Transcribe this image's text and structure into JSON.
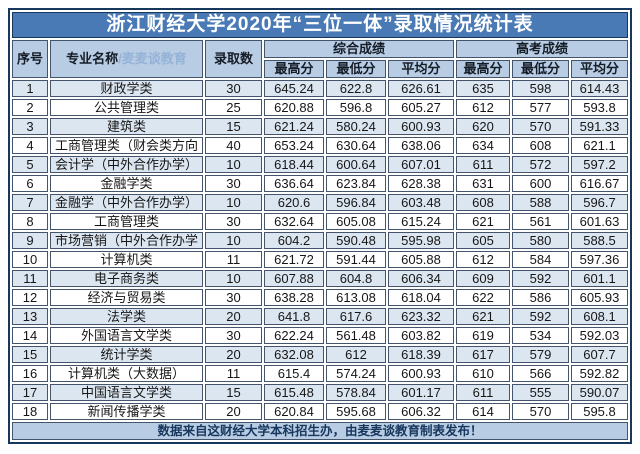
{
  "chart_data": {
    "type": "table",
    "title": "浙江财经大学2020年“三位一体”录取情况统计表",
    "columns": [
      "序号",
      "专业名称",
      "录取数",
      "最高分",
      "最低分",
      "平均分",
      "最高分",
      "最低分",
      "平均分"
    ],
    "column_groups": [
      {
        "label": "综合成绩",
        "span": 3
      },
      {
        "label": "高考成绩",
        "span": 3
      }
    ],
    "major_header_watermark": "/麦麦谈教育",
    "rows": [
      [
        "1",
        "财政学类",
        "30",
        "645.24",
        "622.8",
        "626.61",
        "635",
        "598",
        "614.43"
      ],
      [
        "2",
        "公共管理类",
        "25",
        "620.88",
        "596.8",
        "605.27",
        "612",
        "577",
        "593.8"
      ],
      [
        "3",
        "建筑类",
        "15",
        "621.24",
        "580.24",
        "600.93",
        "620",
        "570",
        "591.33"
      ],
      [
        "4",
        "工商管理类（财会类方向",
        "40",
        "653.24",
        "630.64",
        "638.06",
        "634",
        "608",
        "621.1"
      ],
      [
        "5",
        "会计学（中外合作办学）",
        "10",
        "618.44",
        "600.64",
        "607.01",
        "611",
        "572",
        "597.2"
      ],
      [
        "6",
        "金融学类",
        "30",
        "636.64",
        "623.84",
        "628.38",
        "631",
        "600",
        "616.67"
      ],
      [
        "7",
        "金融学（中外合作办学）",
        "10",
        "620.6",
        "596.84",
        "603.48",
        "608",
        "588",
        "596.7"
      ],
      [
        "8",
        "工商管理类",
        "30",
        "632.64",
        "605.08",
        "615.24",
        "621",
        "561",
        "601.63"
      ],
      [
        "9",
        "市场营销（中外合作办学",
        "10",
        "604.2",
        "590.48",
        "595.98",
        "605",
        "580",
        "588.5"
      ],
      [
        "10",
        "计算机类",
        "11",
        "621.72",
        "591.44",
        "605.88",
        "612",
        "584",
        "597.36"
      ],
      [
        "11",
        "电子商务类",
        "10",
        "607.88",
        "604.8",
        "606.34",
        "609",
        "592",
        "601.1"
      ],
      [
        "12",
        "经济与贸易类",
        "30",
        "638.28",
        "613.08",
        "618.04",
        "622",
        "586",
        "605.93"
      ],
      [
        "13",
        "法学类",
        "20",
        "641.8",
        "617.6",
        "623.32",
        "621",
        "592",
        "608.1"
      ],
      [
        "14",
        "外国语言文学类",
        "30",
        "622.24",
        "561.48",
        "603.82",
        "619",
        "534",
        "592.03"
      ],
      [
        "15",
        "统计学类",
        "20",
        "632.08",
        "612",
        "618.39",
        "617",
        "579",
        "607.7"
      ],
      [
        "16",
        "计算机类（大数据）",
        "11",
        "615.4",
        "574.24",
        "600.93",
        "610",
        "566",
        "592.82"
      ],
      [
        "17",
        "中国语言文学类",
        "15",
        "615.48",
        "578.84",
        "601.17",
        "611",
        "555",
        "590.07"
      ],
      [
        "18",
        "新闻传播学类",
        "20",
        "620.84",
        "595.68",
        "606.32",
        "614",
        "570",
        "595.8"
      ]
    ],
    "footer": "数据来自这财经大学本科招生办，由麦麦谈教育制表发布！"
  },
  "colors": {
    "title_bg": "#4a7ab5",
    "header_bg": "#b8cce4",
    "band_bg": "#dce6f1",
    "cellborder": "#44546a",
    "frame": "#17375d",
    "watermark": "#95b3d7",
    "footer_text": "#17375d"
  }
}
